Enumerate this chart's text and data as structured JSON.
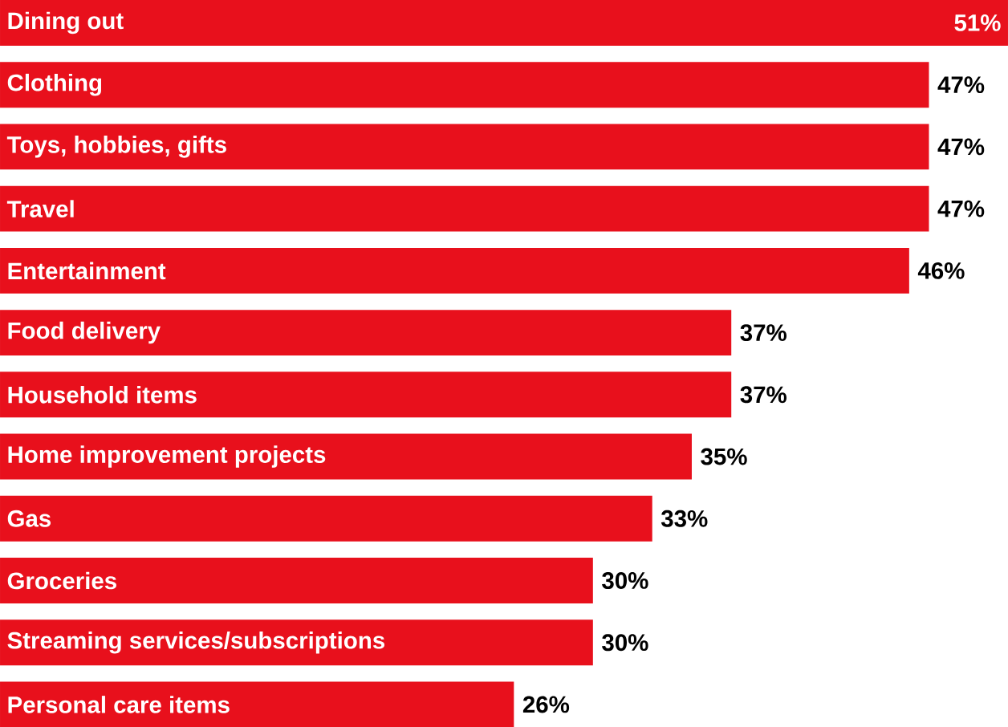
{
  "chart_data": {
    "type": "bar",
    "orientation": "horizontal",
    "data_labels": true,
    "color": "#e8101c",
    "categories": [
      "Dining out",
      "Clothing",
      "Toys, hobbies, gifts",
      "Travel",
      "Entertainment",
      "Food delivery",
      "Household items",
      "Home improvement projects",
      "Gas",
      "Groceries",
      "Streaming services/subscriptions",
      "Personal care items"
    ],
    "values": [
      51,
      47,
      47,
      47,
      46,
      37,
      37,
      35,
      33,
      30,
      30,
      26
    ],
    "value_labels": [
      "51%",
      "47%",
      "47%",
      "47%",
      "46%",
      "37%",
      "37%",
      "35%",
      "33%",
      "30%",
      "30%",
      "26%"
    ]
  }
}
